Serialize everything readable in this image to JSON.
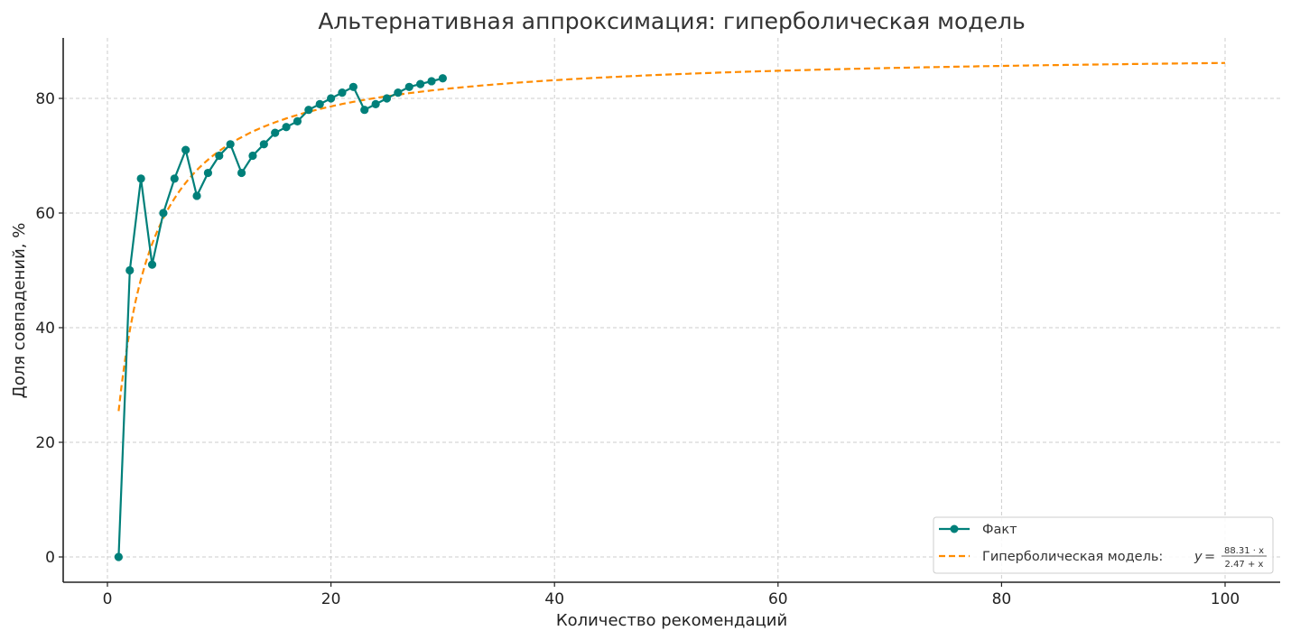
{
  "chart_data": {
    "type": "line",
    "title": "Альтернативная аппроксимация: гиперболическая модель",
    "xlabel": "Количество рекомендаций",
    "ylabel": "Доля совпадений, %",
    "xlim": [
      -4,
      105
    ],
    "ylim": [
      -4.5,
      90.5
    ],
    "xticks": [
      0,
      20,
      40,
      60,
      80,
      100
    ],
    "yticks": [
      0,
      20,
      40,
      60,
      80
    ],
    "grid": true,
    "legend_position": "lower right",
    "series": [
      {
        "name": "Факт",
        "style": "line+markers",
        "color": "#00807a",
        "x": [
          1,
          2,
          3,
          4,
          5,
          6,
          7,
          8,
          9,
          10,
          11,
          12,
          13,
          14,
          15,
          16,
          17,
          18,
          19,
          20,
          21,
          22,
          23,
          24,
          25,
          26,
          27,
          28,
          29,
          30
        ],
        "values": [
          0,
          50,
          66,
          51,
          60,
          66,
          71,
          63,
          67,
          70,
          72,
          67,
          70,
          72,
          74,
          75,
          76,
          78,
          79,
          80,
          81,
          82,
          78,
          79,
          80,
          81,
          82,
          82.5,
          83,
          83.5
        ]
      },
      {
        "name": "Гиперболическая модель",
        "style": "dashed",
        "color": "#ff8c00",
        "formula": "y = 88.31·x / (2.47 + x)",
        "params": {
          "a": 88.31,
          "b": 2.47
        },
        "x_range": [
          1,
          100
        ]
      }
    ]
  },
  "legend": {
    "fact_label": "Факт",
    "model_label": "Гиперболическая модель: ",
    "model_y": "y",
    "model_eq": "=",
    "model_num": "88.31 · x",
    "model_den": "2.47 + x"
  }
}
